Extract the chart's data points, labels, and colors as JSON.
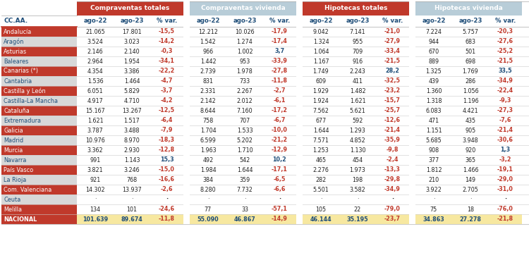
{
  "col_group_labels": [
    "Compraventas totales",
    "Compraventas vivienda",
    "Hipotecas totales",
    "Hipotecas vivienda"
  ],
  "col_group_colors": [
    "#c0392b",
    "#b8cdd8",
    "#c0392b",
    "#b8cdd8"
  ],
  "col_group_text_colors": [
    "#ffffff",
    "#ffffff",
    "#ffffff",
    "#ffffff"
  ],
  "subheader_labels": [
    "ago-22",
    "ago-23",
    "% var.",
    "ago-22",
    "ago-23",
    "% var.",
    "ago-22",
    "ago-23",
    "% var.",
    "ago-22",
    "ago-23",
    "% var."
  ],
  "row_label_col": "CC.AA.",
  "rows": [
    {
      "name": "Andalucía",
      "red": true,
      "vals": [
        "21.065",
        "17.801",
        "-15,5",
        "12.212",
        "10.026",
        "-17,9",
        "9.042",
        "7.141",
        "-21,0",
        "7.224",
        "5.757",
        "-20,3"
      ]
    },
    {
      "name": "Aragón",
      "red": false,
      "vals": [
        "3.524",
        "3.023",
        "-14,2",
        "1.542",
        "1.274",
        "-17,4",
        "1.324",
        "955",
        "-27,9",
        "944",
        "683",
        "-27,6"
      ]
    },
    {
      "name": "Asturias",
      "red": true,
      "vals": [
        "2.146",
        "2.140",
        "-0,3",
        "966",
        "1.002",
        "3,7",
        "1.064",
        "709",
        "-33,4",
        "670",
        "501",
        "-25,2"
      ]
    },
    {
      "name": "Baleares",
      "red": false,
      "vals": [
        "2.964",
        "1.954",
        "-34,1",
        "1.442",
        "953",
        "-33,9",
        "1.167",
        "916",
        "-21,5",
        "889",
        "698",
        "-21,5"
      ]
    },
    {
      "name": "Canarias (*)",
      "red": true,
      "vals": [
        "4.354",
        "3.386",
        "-22,2",
        "2.739",
        "1.978",
        "-27,8",
        "1.749",
        "2.243",
        "28,2",
        "1.325",
        "1.769",
        "33,5"
      ]
    },
    {
      "name": "Cantabria",
      "red": false,
      "vals": [
        "1.536",
        "1.464",
        "-4,7",
        "831",
        "733",
        "-11,8",
        "609",
        "411",
        "-32,5",
        "439",
        "286",
        "-34,9"
      ]
    },
    {
      "name": "Castilla y León",
      "red": true,
      "vals": [
        "6.051",
        "5.829",
        "-3,7",
        "2.331",
        "2.267",
        "-2,7",
        "1.929",
        "1.482",
        "-23,2",
        "1.360",
        "1.056",
        "-22,4"
      ]
    },
    {
      "name": "Castilla-La Mancha",
      "red": false,
      "vals": [
        "4.917",
        "4.710",
        "-4,2",
        "2.142",
        "2.012",
        "-6,1",
        "1.924",
        "1.621",
        "-15,7",
        "1.318",
        "1.196",
        "-9,3"
      ]
    },
    {
      "name": "Cataluña",
      "red": true,
      "vals": [
        "15.167",
        "13.267",
        "-12,5",
        "8.644",
        "7.160",
        "-17,2",
        "7.562",
        "5.621",
        "-25,7",
        "6.083",
        "4.421",
        "-27,3"
      ]
    },
    {
      "name": "Extremadura",
      "red": false,
      "vals": [
        "1.621",
        "1.517",
        "-6,4",
        "758",
        "707",
        "-6,7",
        "677",
        "592",
        "-12,6",
        "471",
        "435",
        "-7,6"
      ]
    },
    {
      "name": "Galicia",
      "red": true,
      "vals": [
        "3.787",
        "3.488",
        "-7,9",
        "1.704",
        "1.533",
        "-10,0",
        "1.644",
        "1.293",
        "-21,4",
        "1.151",
        "905",
        "-21,4"
      ]
    },
    {
      "name": "Madrid",
      "red": false,
      "vals": [
        "10.976",
        "8.970",
        "-18,3",
        "6.599",
        "5.202",
        "-21,2",
        "7.571",
        "4.852",
        "-35,9",
        "5.685",
        "3.948",
        "-30,6"
      ]
    },
    {
      "name": "Murcia",
      "red": true,
      "vals": [
        "3.362",
        "2.930",
        "-12,8",
        "1.963",
        "1.710",
        "-12,9",
        "1.253",
        "1.130",
        "-9,8",
        "908",
        "920",
        "1,3"
      ]
    },
    {
      "name": "Navarra",
      "red": false,
      "vals": [
        "991",
        "1.143",
        "15,3",
        "492",
        "542",
        "10,2",
        "465",
        "454",
        "-2,4",
        "377",
        "365",
        "-3,2"
      ]
    },
    {
      "name": "País Vasco",
      "red": true,
      "vals": [
        "3.821",
        "3.246",
        "-15,0",
        "1.984",
        "1.644",
        "-17,1",
        "2.276",
        "1.973",
        "-13,3",
        "1.812",
        "1.466",
        "-19,1"
      ]
    },
    {
      "name": "La Rioja",
      "red": false,
      "vals": [
        "921",
        "768",
        "-16,6",
        "384",
        "359",
        "-6,5",
        "282",
        "198",
        "-29,8",
        "210",
        "149",
        "-29,0"
      ]
    },
    {
      "name": "Com. Valenciana",
      "red": true,
      "vals": [
        "14.302",
        "13.937",
        "-2,6",
        "8.280",
        "7.732",
        "-6,6",
        "5.501",
        "3.582",
        "-34,9",
        "3.922",
        "2.705",
        "-31,0"
      ]
    },
    {
      "name": "Ceuta",
      "red": false,
      "vals": [
        "·",
        "·",
        "·",
        "·",
        "·",
        "·",
        "·",
        "·",
        "·",
        "·",
        "·",
        "·"
      ]
    },
    {
      "name": "Melilla",
      "red": true,
      "vals": [
        "134",
        "101",
        "-24,6",
        "77",
        "33",
        "-57,1",
        "105",
        "22",
        "-79,0",
        "75",
        "18",
        "-76,0"
      ]
    },
    {
      "name": "NACIONAL",
      "red": false,
      "national": true,
      "vals": [
        "101.639",
        "89.674",
        "-11,8",
        "55.090",
        "46.867",
        "-14,9",
        "46.144",
        "35.195",
        "-23,7",
        "34.863",
        "27.278",
        "-21,8"
      ]
    }
  ],
  "bg_red": "#c0392b",
  "bg_lightgrey": "#c8d0d8",
  "bg_white": "#ffffff",
  "bg_lightred": "#f2d0ce",
  "bg_national_yellow": "#f7e8a0",
  "bg_national_name": "#c0392b",
  "text_red": "#c0392b",
  "text_blue": "#1f4e79",
  "text_white": "#ffffff",
  "text_dark": "#222222",
  "text_grey_name": "#1f4e79"
}
